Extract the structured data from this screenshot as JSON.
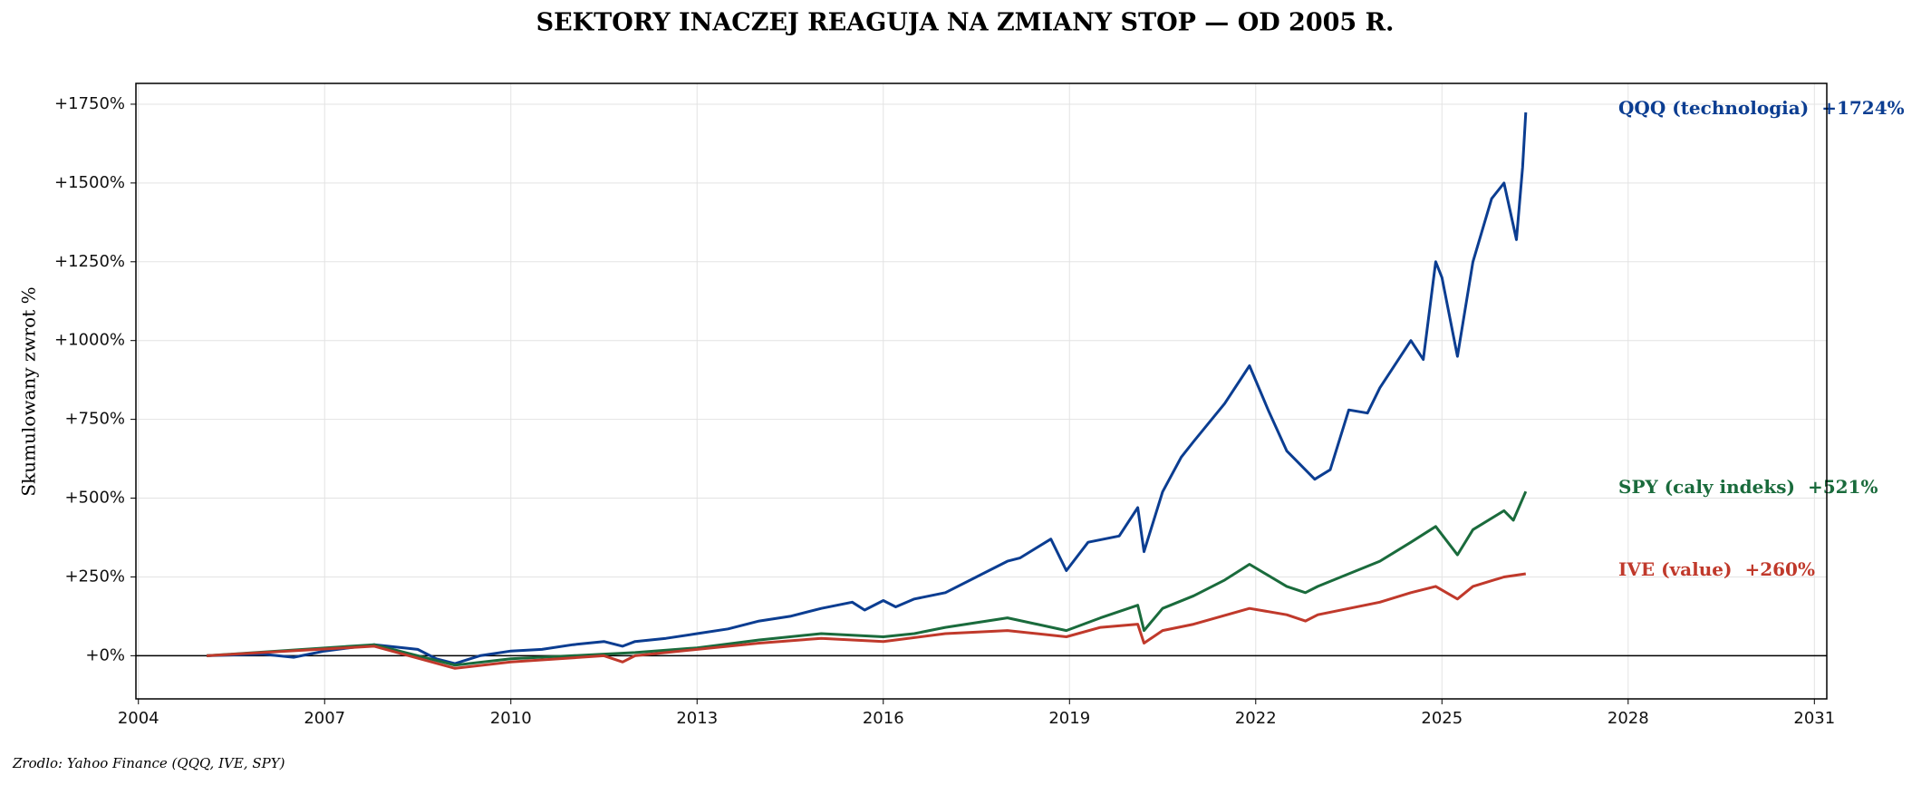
{
  "chart_data": {
    "type": "line",
    "title": "SEKTORY INACZEJ REAGUJA NA ZMIANY STOP — OD 2005 R.",
    "ylabel": "Skumulowany zwrot %",
    "source": "Zrodlo: Yahoo Finance (QQQ, IVE, SPY)",
    "xlim": [
      2003.96,
      2031.2
    ],
    "xticks": [
      2004,
      2007,
      2010,
      2013,
      2016,
      2019,
      2022,
      2025,
      2028,
      2031
    ],
    "ylim": [
      -137,
      1816
    ],
    "yticks": [
      {
        "value": 0,
        "label": "+0%"
      },
      {
        "value": 250,
        "label": "+250%"
      },
      {
        "value": 500,
        "label": "+500%"
      },
      {
        "value": 750,
        "label": "+750%"
      },
      {
        "value": 1000,
        "label": "+1000%"
      },
      {
        "value": 1250,
        "label": "+1250%"
      },
      {
        "value": 1500,
        "label": "+1500%"
      },
      {
        "value": 1750,
        "label": "+1750%"
      }
    ],
    "grid": true,
    "series": [
      {
        "name": "QQQ (technologia)",
        "color": "#0b3d91",
        "end_label": "+1724%",
        "x": [
          2005.1,
          2006,
          2006.5,
          2007,
          2007.8,
          2008.5,
          2008.8,
          2009.1,
          2009.5,
          2010,
          2010.5,
          2011,
          2011.5,
          2011.8,
          2012,
          2012.5,
          2013,
          2013.5,
          2014,
          2014.5,
          2015,
          2015.5,
          2015.7,
          2016,
          2016.2,
          2016.5,
          2017,
          2017.5,
          2018,
          2018.2,
          2018.7,
          2018.95,
          2019.3,
          2019.8,
          2020.1,
          2020.2,
          2020.5,
          2020.8,
          2021,
          2021.5,
          2021.9,
          2022.2,
          2022.5,
          2022.95,
          2023.2,
          2023.5,
          2023.8,
          2024,
          2024.5,
          2024.7,
          2024.9,
          2025,
          2025.25,
          2025.5,
          2025.8,
          2026,
          2026.2,
          2026.3,
          2026.35
        ],
        "values": [
          0,
          5,
          -5,
          15,
          35,
          20,
          -10,
          -25,
          0,
          15,
          20,
          35,
          45,
          30,
          45,
          55,
          70,
          85,
          110,
          125,
          150,
          170,
          145,
          175,
          155,
          180,
          200,
          250,
          300,
          310,
          370,
          270,
          360,
          380,
          470,
          330,
          520,
          630,
          680,
          800,
          920,
          780,
          650,
          560,
          590,
          780,
          770,
          850,
          1000,
          940,
          1250,
          1200,
          950,
          1250,
          1450,
          1500,
          1320,
          1550,
          1724
        ]
      },
      {
        "name": "SPY (caly indeks)",
        "color": "#1a6b3c",
        "end_label": "+521%",
        "x": [
          2005.1,
          2007.8,
          2009.1,
          2010,
          2011.5,
          2012,
          2013,
          2014,
          2015,
          2016,
          2016.5,
          2017,
          2018,
          2018.95,
          2019.5,
          2020.1,
          2020.2,
          2020.5,
          2021,
          2021.5,
          2021.9,
          2022.5,
          2022.8,
          2023,
          2023.5,
          2024,
          2024.5,
          2024.9,
          2025.25,
          2025.5,
          2026,
          2026.15,
          2026.35
        ],
        "values": [
          0,
          35,
          -30,
          -10,
          5,
          10,
          25,
          50,
          70,
          60,
          70,
          90,
          120,
          80,
          120,
          160,
          80,
          150,
          190,
          240,
          290,
          220,
          200,
          220,
          260,
          300,
          360,
          410,
          320,
          400,
          460,
          430,
          521
        ]
      },
      {
        "name": "IVE (value)",
        "color": "#c0392b",
        "end_label": "+260%",
        "x": [
          2005.1,
          2007.8,
          2009.1,
          2010,
          2011.5,
          2011.8,
          2012,
          2013,
          2014,
          2015,
          2016,
          2017,
          2018,
          2018.95,
          2019.5,
          2020.1,
          2020.2,
          2020.5,
          2021,
          2021.9,
          2022.5,
          2022.8,
          2023,
          2024,
          2024.5,
          2024.9,
          2025.25,
          2025.5,
          2026,
          2026.35
        ],
        "values": [
          0,
          30,
          -40,
          -20,
          0,
          -20,
          0,
          20,
          40,
          55,
          45,
          70,
          80,
          60,
          90,
          100,
          40,
          80,
          100,
          150,
          130,
          110,
          130,
          170,
          200,
          220,
          180,
          220,
          250,
          260
        ]
      }
    ]
  }
}
